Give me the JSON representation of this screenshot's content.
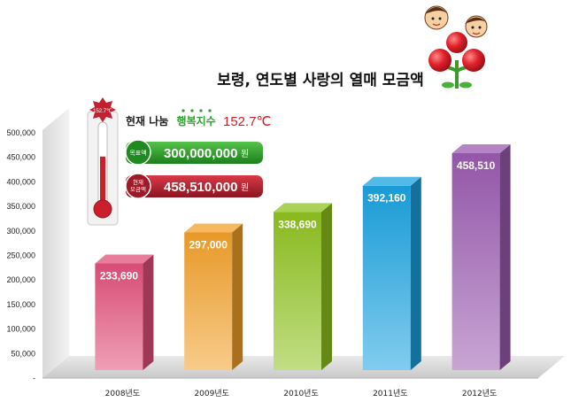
{
  "chart_data": {
    "type": "bar",
    "title": "보령, 연도별 사랑의 열매 모금액",
    "categories": [
      "2008년도",
      "2009년도",
      "2010년도",
      "2011년도",
      "2012년도"
    ],
    "values": [
      233690,
      297000,
      338690,
      392160,
      458510
    ],
    "value_labels": [
      "233,690",
      "297,000",
      "338,690",
      "392,160",
      "458,510"
    ],
    "ylim": [
      0,
      500000
    ],
    "yticks": [
      "-",
      "50,000",
      "100,000",
      "150,000",
      "200,000",
      "250,000",
      "300,000",
      "350,000",
      "400,000",
      "450,000",
      "500,000"
    ],
    "grid": false,
    "colors": [
      "#e2507a",
      "#f3a12a",
      "#8fc320",
      "#1aa3e0",
      "#9b5bb1"
    ]
  },
  "thermometer": {
    "badge": "152.7℃",
    "prefix": "현재 나눔",
    "highlight": "행복지수",
    "value": "152.7℃",
    "fill_fraction": 0.6
  },
  "goal": {
    "label": "목표액",
    "amount": "300,000,000",
    "unit": "원",
    "color": "#2e9e2e"
  },
  "current": {
    "label_line1": "현재",
    "label_line2": "모금액",
    "amount": "458,510,000",
    "unit": "원",
    "color": "#b01f2e"
  }
}
